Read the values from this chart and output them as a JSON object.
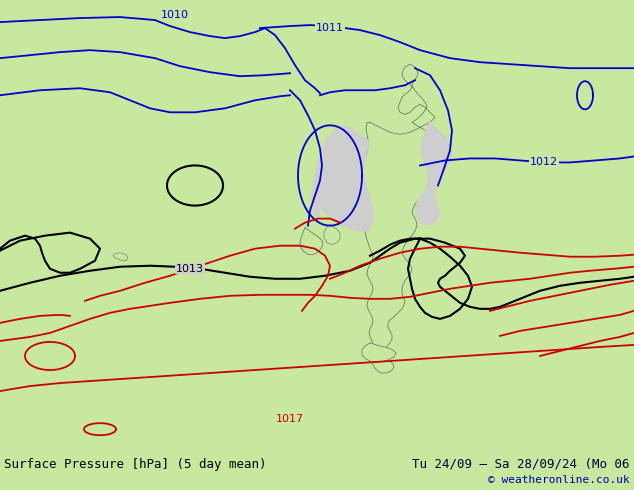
{
  "title_left": "Surface Pressure [hPa] (5 day mean)",
  "title_right": "Tu 24/09 – Sa 28/09/24 (Mo 06",
  "copyright": "© weatheronline.co.uk",
  "land_color": "#c8e8a0",
  "sea_color": "#cecece",
  "border_color": "#888888",
  "blue": "#0000cc",
  "black": "#000000",
  "red": "#cc0000",
  "bottom_bg": "#e8e8e8",
  "bottom_text_color": "#000000",
  "bottom_right_color": "#000033",
  "copyright_color": "#0000aa",
  "font_size": 9,
  "lw_contour": 1.3
}
